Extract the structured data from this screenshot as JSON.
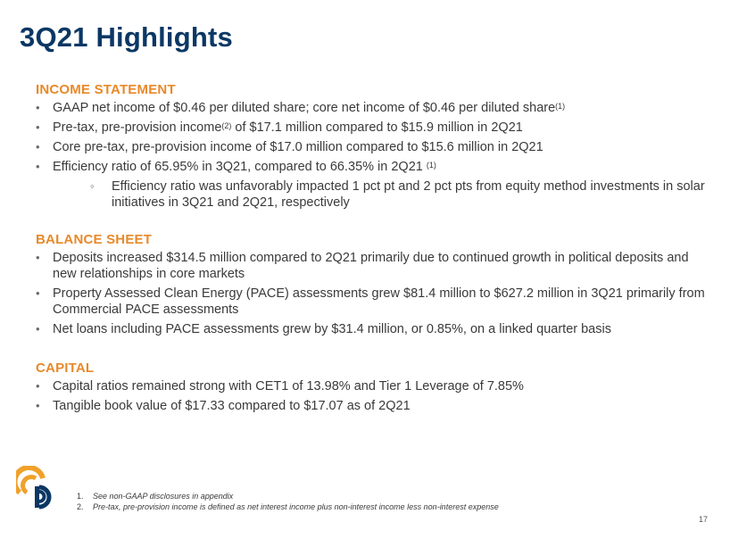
{
  "title": "3Q21 Highlights",
  "sections": [
    {
      "heading": "INCOME STATEMENT",
      "bullets": [
        {
          "text": "GAAP net income of $0.46 per diluted share; core net income of $0.46 per diluted share",
          "sup": "(1)"
        },
        {
          "pre": "Pre-tax, pre-provision income",
          "sup": "(2)",
          "post": " of $17.1 million compared to $15.9 million in 2Q21"
        },
        {
          "text": "Core pre-tax, pre-provision income of $17.0 million compared to $15.6 million in 2Q21"
        },
        {
          "text": "Efficiency ratio of 65.95% in 3Q21, compared to 66.35% in 2Q21 ",
          "sup": "(1)"
        }
      ],
      "sub_bullet": "Efficiency ratio was unfavorably impacted 1 pct pt and 2 pct pts from equity method investments in solar initiatives in 3Q21 and 2Q21, respectively"
    },
    {
      "heading": "BALANCE SHEET",
      "bullets": [
        {
          "text": "Deposits increased $314.5 million compared to 2Q21 primarily due to continued growth in political deposits and new relationships in core markets"
        },
        {
          "text": "Property Assessed Clean Energy (PACE) assessments grew $81.4 million to $627.2 million in 3Q21 primarily from Commercial PACE assessments"
        },
        {
          "text": "Net loans including PACE assessments grew by $31.4 million, or 0.85%, on a linked quarter basis"
        }
      ]
    },
    {
      "heading": "CAPITAL",
      "bullets": [
        {
          "text": "Capital ratios remained strong with CET1 of 13.98% and Tier 1 Leverage of 7.85%"
        },
        {
          "text": "Tangible book value of $17.33 compared to $17.07 as of 2Q21"
        }
      ]
    }
  ],
  "footnotes": [
    {
      "num": "1.",
      "text": "See non-GAAP disclosures in appendix"
    },
    {
      "num": "2.",
      "text": "Pre-tax, pre-provision income is defined as net interest income plus non-interest income less non-interest expense"
    }
  ],
  "page_number": "17",
  "colors": {
    "title": "#0b3764",
    "heading": "#e8892a",
    "logo_orange": "#f0a12a",
    "logo_navy": "#0b3764"
  }
}
